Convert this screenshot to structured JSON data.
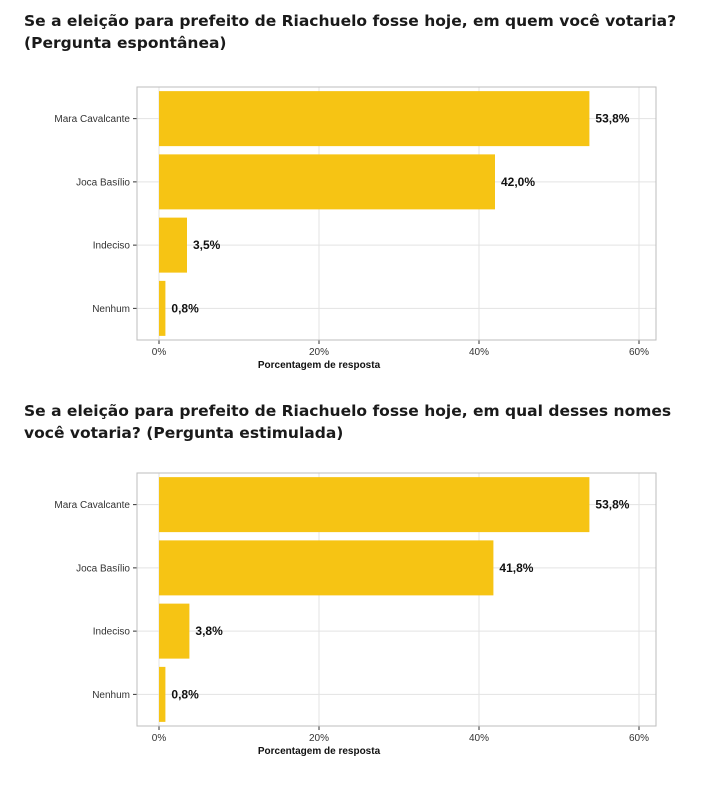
{
  "colors": {
    "bar": "#f6c414",
    "grid": "#e3e3e3",
    "frame": "#bdbdbd"
  },
  "chart_data": [
    {
      "type": "bar",
      "orientation": "horizontal",
      "title_lines": [
        "Se a eleição para prefeito de Riachuelo fosse hoje, em quem você votaria?",
        "(Pergunta espontânea)"
      ],
      "categories": [
        "Mara Cavalcante",
        "Joca Basílio",
        "Indeciso",
        "Nenhum"
      ],
      "values": [
        53.8,
        42.0,
        3.5,
        0.8
      ],
      "data_labels": [
        "53,8%",
        "42,0%",
        "3,5%",
        "0,8%"
      ],
      "xlabel": "Porcentagem de resposta",
      "ylabel": "",
      "xlim": [
        0,
        60
      ],
      "x_ticks": [
        0,
        20,
        40,
        60
      ],
      "x_tick_labels": [
        "0%",
        "20%",
        "40%",
        "60%"
      ],
      "grid": true,
      "legend": "none"
    },
    {
      "type": "bar",
      "orientation": "horizontal",
      "title_lines": [
        "Se a eleição para prefeito de Riachuelo fosse hoje, em qual desses nomes",
        "você votaria? (Pergunta estimulada)"
      ],
      "categories": [
        "Mara Cavalcante",
        "Joca Basílio",
        "Indeciso",
        "Nenhum"
      ],
      "values": [
        53.8,
        41.8,
        3.8,
        0.8
      ],
      "data_labels": [
        "53,8%",
        "41,8%",
        "3,8%",
        "0,8%"
      ],
      "xlabel": "Porcentagem de resposta",
      "ylabel": "",
      "xlim": [
        0,
        60
      ],
      "x_ticks": [
        0,
        20,
        40,
        60
      ],
      "x_tick_labels": [
        "0%",
        "20%",
        "40%",
        "60%"
      ],
      "grid": true,
      "legend": "none"
    }
  ]
}
